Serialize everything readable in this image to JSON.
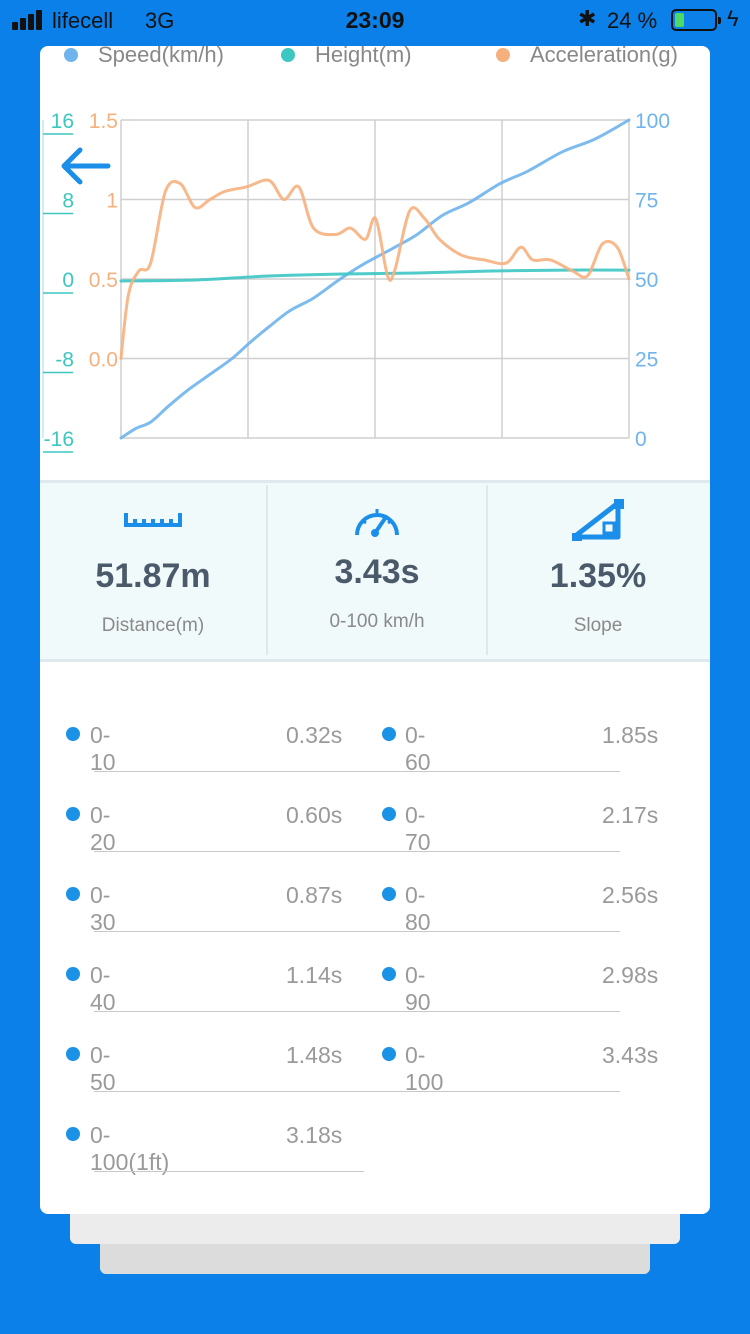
{
  "status_bar": {
    "carrier": "lifecell",
    "network": "3G",
    "time": "23:09",
    "battery_text": "24 %",
    "battery_level": 0.24
  },
  "legend": [
    {
      "label": "Speed(km/h)",
      "color": "#6fb4ec"
    },
    {
      "label": "Height(m)",
      "color": "#3cc7c3"
    },
    {
      "label": "Acceleration(g)",
      "color": "#f6b07e"
    }
  ],
  "chart_data": {
    "type": "line",
    "left_axis_height": {
      "ticks": [
        "16",
        "8",
        "0",
        "-8",
        "-16"
      ],
      "range": [
        -16,
        16
      ],
      "color": "#3cc7c3"
    },
    "left_axis_accel": {
      "ticks": [
        "1.5",
        "1",
        "0.5",
        "0.0"
      ],
      "range": [
        -0.5,
        1.5
      ],
      "color": "#f6b07e"
    },
    "right_axis_speed": {
      "ticks": [
        "100",
        "75",
        "50",
        "25",
        "0"
      ],
      "range": [
        0,
        100
      ],
      "color": "#6fb4ec"
    },
    "x_range": [
      0,
      3.43
    ],
    "grid": true,
    "series": [
      {
        "name": "Speed(km/h)",
        "color": "#6fb4ec",
        "x": [
          0,
          0.1,
          0.2,
          0.32,
          0.45,
          0.6,
          0.75,
          0.87,
          1.0,
          1.14,
          1.3,
          1.48,
          1.65,
          1.85,
          2.0,
          2.17,
          2.35,
          2.56,
          2.75,
          2.98,
          3.2,
          3.43
        ],
        "y": [
          0,
          3,
          5,
          10,
          15,
          20,
          25,
          30,
          35,
          40,
          44,
          50,
          55,
          60,
          64,
          70,
          74,
          80,
          84,
          90,
          94,
          100
        ]
      },
      {
        "name": "Height(m)",
        "color": "#3cc7c3",
        "x": [
          0,
          0.5,
          1.0,
          1.5,
          2.0,
          2.5,
          3.0,
          3.43
        ],
        "y": [
          -0.2,
          -0.1,
          0.3,
          0.5,
          0.6,
          0.8,
          0.9,
          0.9
        ]
      },
      {
        "name": "Acceleration(g)",
        "color": "#f6b07e",
        "x": [
          0,
          0.05,
          0.12,
          0.2,
          0.3,
          0.4,
          0.5,
          0.6,
          0.7,
          0.85,
          1.0,
          1.1,
          1.2,
          1.3,
          1.45,
          1.55,
          1.65,
          1.72,
          1.8,
          1.85,
          1.95,
          2.05,
          2.15,
          2.3,
          2.45,
          2.6,
          2.7,
          2.78,
          2.9,
          3.05,
          3.15,
          3.25,
          3.35,
          3.43
        ],
        "y": [
          0.0,
          0.4,
          0.55,
          0.6,
          1.05,
          1.1,
          0.95,
          1.0,
          1.05,
          1.08,
          1.12,
          1.0,
          1.08,
          0.82,
          0.78,
          0.82,
          0.75,
          0.88,
          0.52,
          0.56,
          0.93,
          0.88,
          0.75,
          0.65,
          0.62,
          0.6,
          0.7,
          0.62,
          0.62,
          0.55,
          0.52,
          0.72,
          0.7,
          0.5
        ]
      }
    ]
  },
  "stats": [
    {
      "value": "51.87m",
      "label": "Distance(m)",
      "icon": "ruler-icon"
    },
    {
      "value": "3.43s",
      "label": "0-100 km/h",
      "icon": "speedometer-icon"
    },
    {
      "value": "1.35%",
      "label": "Slope",
      "icon": "slope-icon"
    }
  ],
  "timings": {
    "left": [
      {
        "label": "0-10",
        "value": "0.32s"
      },
      {
        "label": "0-20",
        "value": "0.60s"
      },
      {
        "label": "0-30",
        "value": "0.87s"
      },
      {
        "label": "0-40",
        "value": "1.14s"
      },
      {
        "label": "0-50",
        "value": "1.48s"
      },
      {
        "label": "0-100(1ft)",
        "value": "3.18s"
      }
    ],
    "right": [
      {
        "label": "0-60",
        "value": "1.85s"
      },
      {
        "label": "0-70",
        "value": "2.17s"
      },
      {
        "label": "0-80",
        "value": "2.56s"
      },
      {
        "label": "0-90",
        "value": "2.98s"
      },
      {
        "label": "0-100",
        "value": "3.43s"
      }
    ]
  }
}
